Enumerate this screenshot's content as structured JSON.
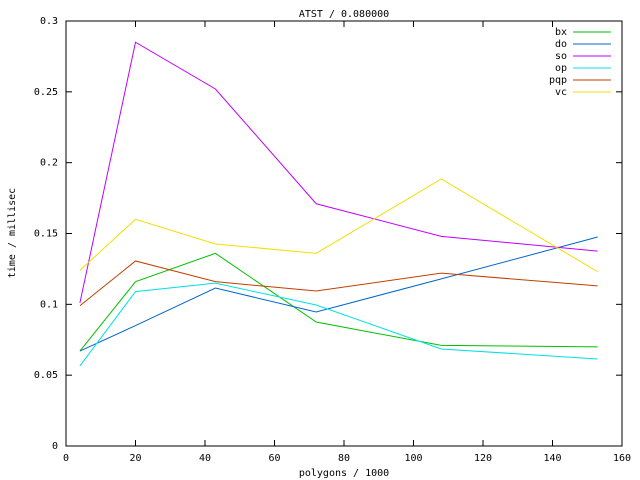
{
  "chart_data": {
    "type": "line",
    "title": "ATST / 0.080000",
    "x_label": "polygons / 1000",
    "y_label": "time / millisec",
    "x": [
      4,
      20,
      43,
      72,
      108,
      153
    ],
    "xlim": [
      0,
      160
    ],
    "xticks": [
      0,
      20,
      40,
      60,
      80,
      100,
      120,
      140,
      160
    ],
    "ylim": [
      0,
      0.3
    ],
    "yticks": [
      0,
      0.05,
      0.1,
      0.15,
      0.2,
      0.25,
      0.3
    ],
    "grid": false,
    "legend": "top-right",
    "series": [
      {
        "name": "bx",
        "color": "#00c000",
        "values": [
          0.067,
          0.116,
          0.136,
          0.0875,
          0.071,
          0.07
        ]
      },
      {
        "name": "do",
        "color": "#0066cc",
        "values": [
          0.067,
          0.085,
          0.1115,
          0.0946,
          0.118,
          0.1475
        ]
      },
      {
        "name": "so",
        "color": "#c000ff",
        "values": [
          0.101,
          0.285,
          0.252,
          0.171,
          0.148,
          0.1376
        ]
      },
      {
        "name": "op",
        "color": "#00e0e0",
        "values": [
          0.0565,
          0.109,
          0.115,
          0.0995,
          0.0685,
          0.0614
        ]
      },
      {
        "name": "pqp",
        "color": "#c04000",
        "values": [
          0.099,
          0.1306,
          0.116,
          0.1094,
          0.122,
          0.113
        ]
      },
      {
        "name": "vc",
        "color": "#f0e000",
        "values": [
          0.124,
          0.16,
          0.1426,
          0.136,
          0.1885,
          0.123
        ]
      }
    ]
  }
}
